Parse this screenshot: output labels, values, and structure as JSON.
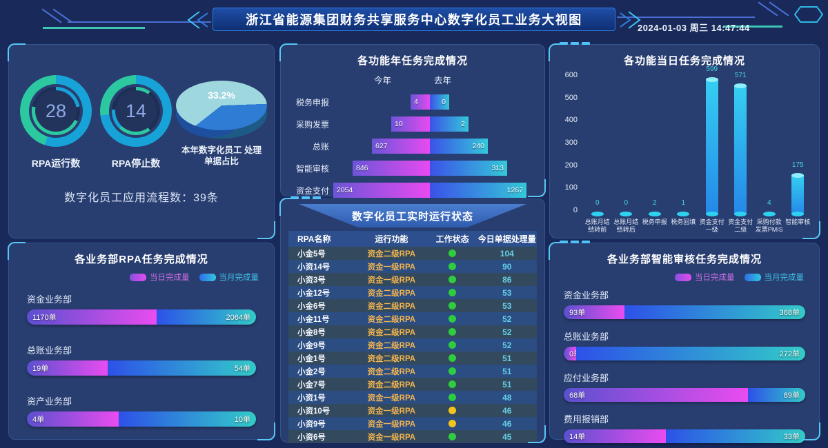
{
  "header": {
    "title": "浙江省能源集团财务共享服务中心数字化员工业务大视图",
    "datetime": "2024-01-03 周三 14:47:44"
  },
  "colors": {
    "background": "#18295a",
    "panel": "#293e70",
    "accent_cyan": "#58c8f5",
    "gradient_day": [
      "#5b50d0",
      "#ea4cf0"
    ],
    "gradient_month": [
      "#2d51e8",
      "#32cbc8"
    ],
    "donut_green": "#2cc9a0",
    "donut_cyan": "#17a2d8",
    "status_green": "#2ecc3e",
    "status_yellow": "#f2c41c",
    "func_text": "#f2b44e",
    "count_text": "#66cfe6"
  },
  "left_top": {
    "donuts": [
      {
        "value": "28",
        "label": "RPA运行数"
      },
      {
        "value": "14",
        "label": "RPA停止数"
      }
    ],
    "pie": {
      "pct": "33.2%",
      "label": "本年数字化员工 处理单据占比"
    },
    "flow_label": "数字化员工应用流程数：39条"
  },
  "left_bottom": {
    "title": "各业务部RPA任务完成情况",
    "legend": {
      "day": "当日完成量",
      "month": "当月完成量"
    },
    "rows": [
      {
        "dept": "资金业务部",
        "day": "1170单",
        "month": "2064单"
      },
      {
        "dept": "总账业务部",
        "day": "19单",
        "month": "54单"
      },
      {
        "dept": "资产业务部",
        "day": "4单",
        "month": "10单"
      }
    ]
  },
  "mid_top": {
    "title": "各功能年任务完成情况",
    "legend": {
      "this_year": "今年",
      "last_year": "去年"
    },
    "rows": [
      {
        "label": "税务申报",
        "this_year": 4,
        "last_year": 0
      },
      {
        "label": "采购发票",
        "this_year": 10,
        "last_year": 2
      },
      {
        "label": "总账",
        "this_year": 627,
        "last_year": 240
      },
      {
        "label": "智能审核",
        "this_year": 846,
        "last_year": 313
      },
      {
        "label": "资金支付",
        "this_year": 2054,
        "last_year": 1267
      }
    ]
  },
  "mid_bottom": {
    "title": "数字化员工实时运行状态",
    "columns": [
      "RPA名称",
      "运行功能",
      "工作状态",
      "今日单据处理量"
    ],
    "rows": [
      {
        "name": "小金5号",
        "func": "资金二级RPA",
        "status": "green",
        "count": 104
      },
      {
        "name": "小资14号",
        "func": "资金一级RPA",
        "status": "green",
        "count": 90
      },
      {
        "name": "小资3号",
        "func": "资金一级RPA",
        "status": "green",
        "count": 86
      },
      {
        "name": "小金12号",
        "func": "资金二级RPA",
        "status": "green",
        "count": 53
      },
      {
        "name": "小金6号",
        "func": "资金二级RPA",
        "status": "green",
        "count": 53
      },
      {
        "name": "小金11号",
        "func": "资金二级RPA",
        "status": "green",
        "count": 52
      },
      {
        "name": "小金8号",
        "func": "资金二级RPA",
        "status": "green",
        "count": 52
      },
      {
        "name": "小金9号",
        "func": "资金二级RPA",
        "status": "green",
        "count": 52
      },
      {
        "name": "小金1号",
        "func": "资金二级RPA",
        "status": "green",
        "count": 51
      },
      {
        "name": "小金2号",
        "func": "资金二级RPA",
        "status": "green",
        "count": 51
      },
      {
        "name": "小金7号",
        "func": "资金二级RPA",
        "status": "green",
        "count": 51
      },
      {
        "name": "小资1号",
        "func": "资金一级RPA",
        "status": "green",
        "count": 48
      },
      {
        "name": "小资10号",
        "func": "资金一级RPA",
        "status": "yellow",
        "count": 46
      },
      {
        "name": "小资9号",
        "func": "资金一级RPA",
        "status": "yellow",
        "count": 46
      },
      {
        "name": "小资6号",
        "func": "资金一级RPA",
        "status": "green",
        "count": 45
      }
    ]
  },
  "right_top": {
    "title": "各功能当日任务完成情况",
    "y_ticks": [
      600,
      500,
      400,
      300,
      200,
      100,
      0
    ],
    "y_max": 600,
    "bars": [
      {
        "label": "总账月结结转前",
        "value": 0
      },
      {
        "label": "总账月结结转后",
        "value": 0
      },
      {
        "label": "税务申报",
        "value": 2
      },
      {
        "label": "税务回填",
        "value": 1
      },
      {
        "label": "资金支付一级",
        "value": 599
      },
      {
        "label": "资金支付二级",
        "value": 571
      },
      {
        "label": "采购付款发票PMIS",
        "value": 4
      },
      {
        "label": "智能审核",
        "value": 175
      }
    ]
  },
  "right_bottom": {
    "title": "各业务部智能审核任务完成情况",
    "legend": {
      "day": "当日完成量",
      "month": "当月完成量"
    },
    "rows": [
      {
        "dept": "资金业务部",
        "day": "93单",
        "month": "368单"
      },
      {
        "dept": "总账业务部",
        "day": "0单",
        "month": "272单"
      },
      {
        "dept": "应付业务部",
        "day": "68单",
        "month": "89单"
      },
      {
        "dept": "费用报销部",
        "day": "14单",
        "month": "33单"
      }
    ]
  },
  "chart_data": [
    {
      "type": "pie",
      "title": "RPA运行数",
      "values": [
        28
      ],
      "note": "gauge-ring"
    },
    {
      "type": "pie",
      "title": "RPA停止数",
      "values": [
        14
      ],
      "note": "gauge-ring"
    },
    {
      "type": "pie",
      "title": "本年数字化员工处理单据占比",
      "slices": [
        {
          "label": "占比",
          "value": 33.2
        },
        {
          "label": "其他",
          "value": 66.8
        }
      ]
    },
    {
      "type": "bar",
      "title": "各业务部RPA任务完成情况",
      "unit": "单",
      "categories": [
        "资金业务部",
        "总账业务部",
        "资产业务部"
      ],
      "series": [
        {
          "name": "当日完成量",
          "values": [
            1170,
            19,
            4
          ]
        },
        {
          "name": "当月完成量",
          "values": [
            2064,
            54,
            10
          ]
        }
      ]
    },
    {
      "type": "bar",
      "title": "各功能年任务完成情况",
      "categories": [
        "税务申报",
        "采购发票",
        "总账",
        "智能审核",
        "资金支付"
      ],
      "series": [
        {
          "name": "今年",
          "values": [
            4,
            10,
            627,
            846,
            2054
          ]
        },
        {
          "name": "去年",
          "values": [
            0,
            2,
            240,
            313,
            1267
          ]
        }
      ]
    },
    {
      "type": "bar",
      "title": "各功能当日任务完成情况",
      "ylim": [
        0,
        600
      ],
      "categories": [
        "总账月结结转前",
        "总账月结结转后",
        "税务申报",
        "税务回填",
        "资金支付一级",
        "资金支付二级",
        "采购付款发票PMIS",
        "智能审核"
      ],
      "values": [
        0,
        0,
        2,
        1,
        599,
        571,
        4,
        175
      ]
    },
    {
      "type": "bar",
      "title": "各业务部智能审核任务完成情况",
      "unit": "单",
      "categories": [
        "资金业务部",
        "总账业务部",
        "应付业务部",
        "费用报销部"
      ],
      "series": [
        {
          "name": "当日完成量",
          "values": [
            93,
            0,
            68,
            14
          ]
        },
        {
          "name": "当月完成量",
          "values": [
            368,
            272,
            89,
            33
          ]
        }
      ]
    }
  ]
}
